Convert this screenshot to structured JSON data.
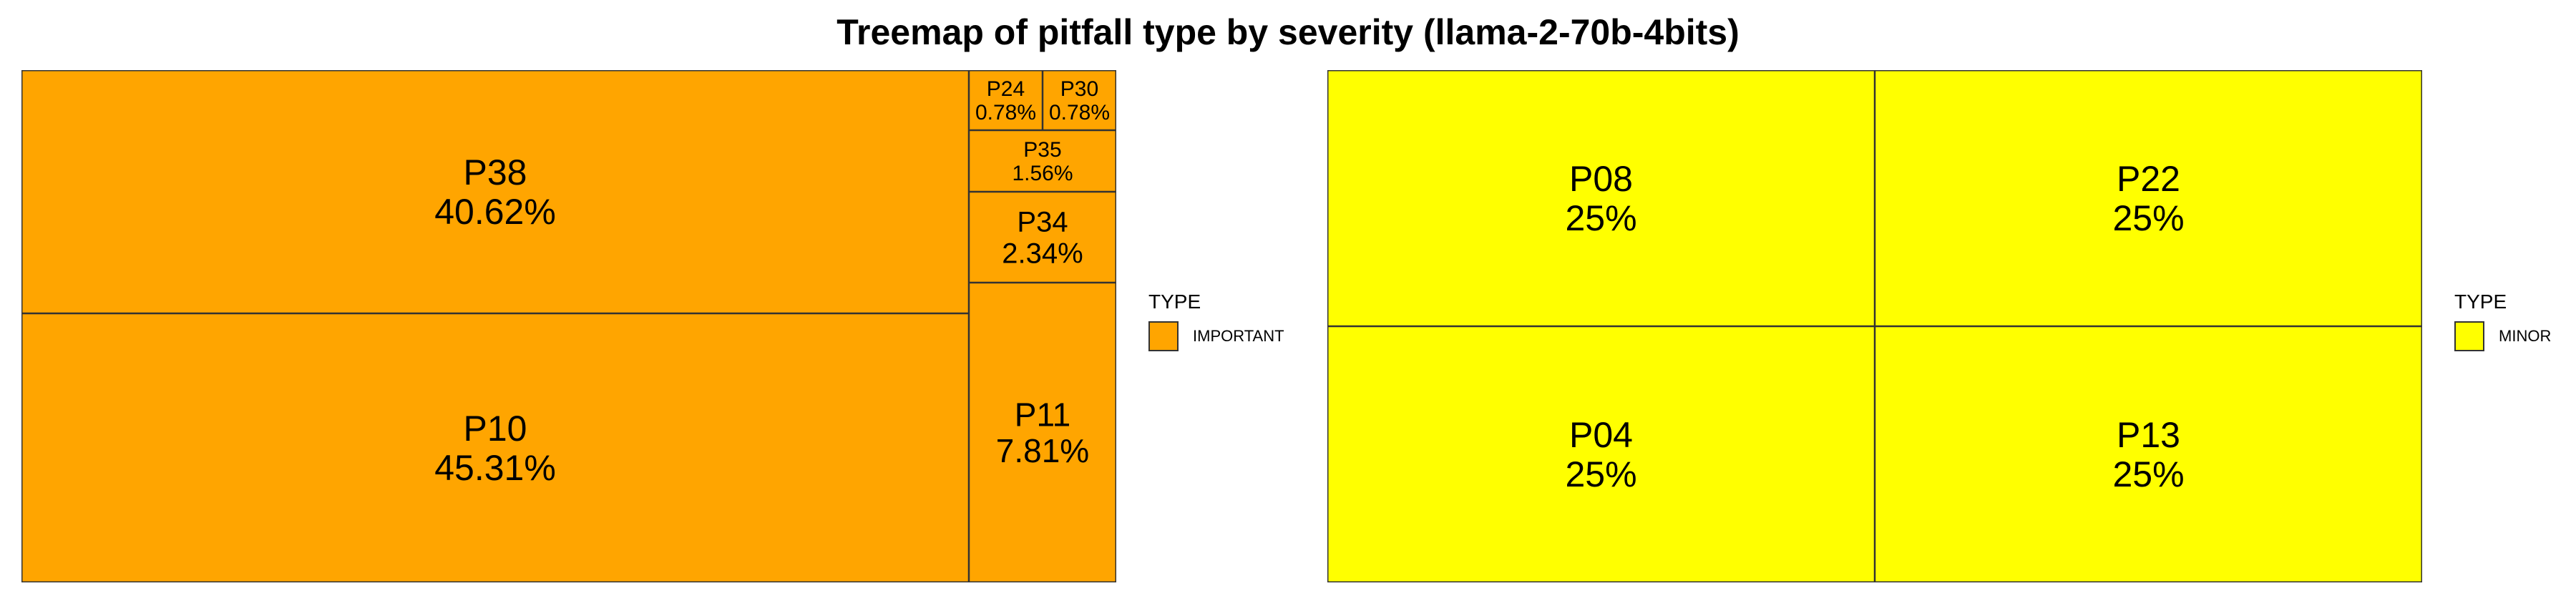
{
  "title": "Treemap of pitfall type by severity (llama-2-70b-4bits)",
  "chart_data": [
    {
      "type": "treemap",
      "group": "IMPORTANT",
      "color": "#FFA500",
      "legend_title": "TYPE",
      "legend_label": "IMPORTANT",
      "items": [
        {
          "label": "P10",
          "percent_label": "45.31%",
          "value": 45.31
        },
        {
          "label": "P38",
          "percent_label": "40.62%",
          "value": 40.62
        },
        {
          "label": "P11",
          "percent_label": "7.81%",
          "value": 7.81
        },
        {
          "label": "P34",
          "percent_label": "2.34%",
          "value": 2.34
        },
        {
          "label": "P35",
          "percent_label": "1.56%",
          "value": 1.56
        },
        {
          "label": "P24",
          "percent_label": "0.78%",
          "value": 0.78
        },
        {
          "label": "P30",
          "percent_label": "0.78%",
          "value": 0.78
        }
      ]
    },
    {
      "type": "treemap",
      "group": "MINOR",
      "color": "#FFFF00",
      "legend_title": "TYPE",
      "legend_label": "MINOR",
      "items": [
        {
          "label": "P08",
          "percent_label": "25%",
          "value": 25
        },
        {
          "label": "P22",
          "percent_label": "25%",
          "value": 25
        },
        {
          "label": "P04",
          "percent_label": "25%",
          "value": 25
        },
        {
          "label": "P13",
          "percent_label": "25%",
          "value": 25
        }
      ]
    }
  ]
}
